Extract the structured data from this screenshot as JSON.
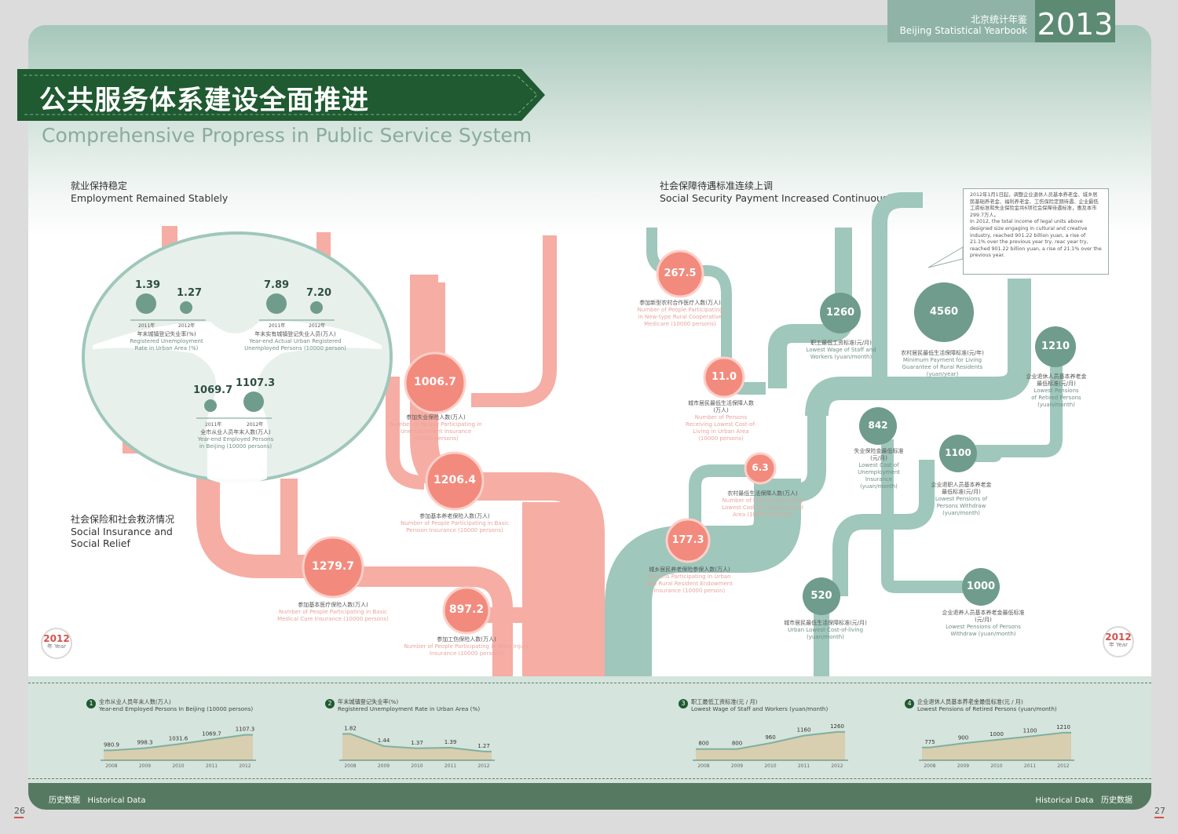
{
  "header": {
    "yearbook_cn": "北京统计年鉴",
    "yearbook_en": "Beijing Statistical Yearbook",
    "year": "2013"
  },
  "title": {
    "cn": "公共服务体系建设全面推进",
    "en": "Comprehensive Propress in Public Service System"
  },
  "sections": {
    "employment": {
      "cn": "就业保持稳定",
      "en": "Employment Remained Stablely"
    },
    "social_security": {
      "cn": "社会保障待遇标准连续上调",
      "en": "Social Security Payment Increased Continuously"
    },
    "insurance": {
      "cn": "社会保险和社会救济情况",
      "en1": "Social Insurance and",
      "en2": "Social Relief"
    }
  },
  "employment_circle": {
    "rate": {
      "v2011": "1.39",
      "v2012": "1.27",
      "y2011": "2011年",
      "y2012": "2012年",
      "cn": "年末城镇登记失业率(%)",
      "en1": "Registered Unemployment",
      "en2": "Rate in Urban Area (%)"
    },
    "unemployed": {
      "v2011": "7.89",
      "v2012": "7.20",
      "y2011": "2011年",
      "y2012": "2012年",
      "cn": "年末实有城镇登记失业人员(万人)",
      "en1": "Year-end Actual Urban Registered",
      "en2": "Unemployed Persons (10000 person)"
    },
    "employed": {
      "v2011": "1069.7",
      "v2012": "1107.3",
      "y2011": "2011年",
      "y2012": "2012年",
      "cn": "全市从业人员年末人数(万人)",
      "en1": "Year-end Employed Persons",
      "en2": "in Beijing (10000 persons)"
    }
  },
  "pink_bubbles": [
    {
      "value": "1006.7",
      "cn": "参加失业保险人数(万人)",
      "en1": "Number of People Participating in",
      "en2": "Unemployment Insurance",
      "en3": "(10000 persons)"
    },
    {
      "value": "1206.4",
      "cn": "参加基本养老保险人数(万人)",
      "en1": "Number of People Participating in Basic",
      "en2": "Pension Insurance (10000 persons)",
      "en3": ""
    },
    {
      "value": "1279.7",
      "cn": "参加基本医疗保险人数(万人)",
      "en1": "Number of People Participating in Basic",
      "en2": "Medical Care Insurance (10000 persons)",
      "en3": ""
    },
    {
      "value": "897.2",
      "cn": "参加工伤保险人数(万人)",
      "en1": "Number of People Participating in Work Injury",
      "en2": "Insurance (10000 persons)",
      "en3": ""
    },
    {
      "value": "267.5",
      "cn": "参加新型农村合作医疗人数(万人)",
      "en1": "Number of People Participating",
      "en2": "in New-type Rural Cooperative",
      "en3": "Medicare (10000 persons)"
    },
    {
      "value": "11.0",
      "cn": "城市居民最低生活保障人数(万人)",
      "en1": "Number of Persons",
      "en2": "Receiving Lowest Cost-of-Living in Urban Area",
      "en3": "(10000 persons)"
    },
    {
      "value": "6.3",
      "cn": "农村最低生活保障人数(万人)",
      "en1": "Number of Persons Receiving",
      "en2": "Lowest Cost-of-Living in Rural",
      "en3": "Area (10000 persons)"
    },
    {
      "value": "177.3",
      "cn": "城乡居民养老保险参保人数(万人)",
      "en1": "Persons Participating in Urban",
      "en2": "and Rural Resident Endowment",
      "en3": "Insurance (10000 person)"
    }
  ],
  "green_bubbles": [
    {
      "value": "1260",
      "cn": "职工最低工资标准(元/月)",
      "en1": "Lowest Wage of Staff and",
      "en2": "Workers (yuan/month)"
    },
    {
      "value": "4560",
      "cn": "农村居民最低生活保障标准(元/年)",
      "en1": "Minimum Payment for Living",
      "en2": "Guarantee of Rural Residents (yuan/year)"
    },
    {
      "value": "1210",
      "cn": "企业退休人员基本养老金最低标准(元/月)",
      "en1": "Lowest Pensions",
      "en2": "of Retired Persons (yuan/month)"
    },
    {
      "value": "842",
      "cn": "失业保险金最低标准(元/月)",
      "en1": "Lowest Cost of Unemployment",
      "en2": "Insurance (yuan/month)"
    },
    {
      "value": "1100",
      "cn": "企业退职人员基本养老金最低标准(元/月)",
      "en1": "Lowest Pensions of",
      "en2": "Persons Withdraw (yuan/month)"
    },
    {
      "value": "520",
      "cn": "城市居民最低生活保障标准(元/月)",
      "en1": "Urban Lowest Cost-of-living",
      "en2": "(yuan/month)"
    },
    {
      "value": "1000",
      "cn": "企业退养人员基本养老金最低标准(元/月)",
      "en1": "Lowest Pensions of Persons",
      "en2": "Withdraw (yuan/month)"
    }
  ],
  "note": {
    "cn": "2012年1月1日起，调整企业退休人员基本养老金、城乡居民基础养老金、福利养老金、工伤保险定期待遇、企业最低工资标准和失业保险金共6项社会保障待遇标准，惠及本市299.7万人。",
    "en": "In 2012, the total income of legal units above designed size engaging in cultural and creative industry, reached 901.22 billion yuan, a rise of 21.1% over the previous year try, reac year try, reached 901.22 billion yuan, a rise of 21.1% over the previous year."
  },
  "year_badge": {
    "year": "2012",
    "text": "年 Year"
  },
  "historical": {
    "cn": "历史数据",
    "en": "Historical Data"
  },
  "page_numbers": {
    "left": "26",
    "right": "27"
  },
  "chart_data": [
    {
      "type": "area",
      "index": "1",
      "title_cn": "全市从业人员年末人数(万人)",
      "title_en": "Year-end Employed Persons In Beijing (10000 persons)",
      "x": [
        "2008",
        "2009",
        "2010",
        "2011",
        "2012"
      ],
      "values": [
        980.9,
        998.3,
        1031.6,
        1069.7,
        1107.3
      ],
      "labels": [
        "980.9",
        "998.3",
        "1031.6",
        "1069.7",
        "1107.3"
      ],
      "ylim": [
        900,
        1150
      ]
    },
    {
      "type": "area",
      "index": "2",
      "title_cn": "年末城镇登记失业率(%)",
      "title_en": "Registered Unemployment Rate in Urban Area (%)",
      "x": [
        "2008",
        "2009",
        "2010",
        "2011",
        "2012"
      ],
      "values": [
        1.82,
        1.44,
        1.37,
        1.39,
        1.27
      ],
      "labels": [
        "1.82",
        "1.44",
        "1.37",
        "1.39",
        "1.27"
      ],
      "ylim": [
        1.0,
        1.95
      ]
    },
    {
      "type": "area",
      "index": "3",
      "title_cn": "职工最低工资标准(元 / 月)",
      "title_en": "Lowest Wage of Staff and Workers (yuan/month)",
      "x": [
        "2008",
        "2009",
        "2010",
        "2011",
        "2012"
      ],
      "values": [
        800,
        800,
        960,
        1160,
        1260
      ],
      "labels": [
        "800",
        "800",
        "960",
        "1160",
        "1260"
      ],
      "ylim": [
        500,
        1320
      ]
    },
    {
      "type": "area",
      "index": "4",
      "title_cn": "企业退休人员基本养老金最低标准(元 / 月)",
      "title_en": "Lowest Pensions of Retired Persons (yuan/month)",
      "x": [
        "2008",
        "2009",
        "2010",
        "2011",
        "2012"
      ],
      "values": [
        775,
        900,
        1000,
        1100,
        1210
      ],
      "labels": [
        "775",
        "900",
        "1000",
        "1100",
        "1210"
      ],
      "ylim": [
        400,
        1300
      ]
    }
  ],
  "colors": {
    "dark_green": "#1f5a30",
    "sage": "#9fc7bb",
    "pink": "#f6ada4",
    "salmon": "#f28b7d",
    "teal_bubble": "#6f9c8d",
    "area_fill": "#d8ceb0"
  }
}
